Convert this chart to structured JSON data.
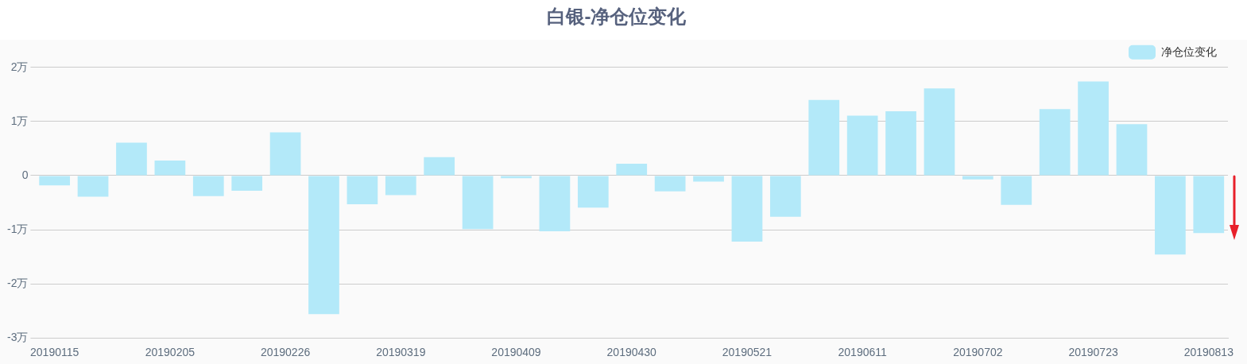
{
  "chart_data": {
    "type": "bar",
    "title": "白银-净仓位变化",
    "categories": [
      "20190115",
      null,
      null,
      "20190205",
      null,
      null,
      "20190226",
      null,
      null,
      "20190319",
      null,
      null,
      "20190409",
      null,
      null,
      "20190430",
      null,
      null,
      "20190521",
      null,
      null,
      "20190611",
      null,
      null,
      "20190702",
      null,
      null,
      "20190723",
      null,
      null,
      "20190813"
    ],
    "series": [
      {
        "name": "净仓位变化",
        "color": "#b3e9f9",
        "values": [
          -0.18,
          -0.39,
          0.61,
          0.28,
          -0.38,
          -0.28,
          0.8,
          -2.56,
          -0.53,
          -0.36,
          0.34,
          -0.99,
          -0.05,
          -1.03,
          -0.59,
          0.22,
          -0.29,
          -0.11,
          -1.22,
          -0.76,
          1.4,
          1.11,
          1.19,
          1.61,
          -0.07,
          -0.54,
          1.23,
          1.74,
          0.95,
          -1.46,
          -1.06
        ]
      }
    ],
    "ylim": [
      -3,
      2
    ],
    "yticks": [
      {
        "value": -3,
        "label": "-3万"
      },
      {
        "value": -2,
        "label": "-2万"
      },
      {
        "value": -1,
        "label": "-1万"
      },
      0,
      {
        "value": 1,
        "label": "1万"
      },
      {
        "value": 2,
        "label": "2万"
      }
    ],
    "grid": "y",
    "legend": "top right"
  }
}
